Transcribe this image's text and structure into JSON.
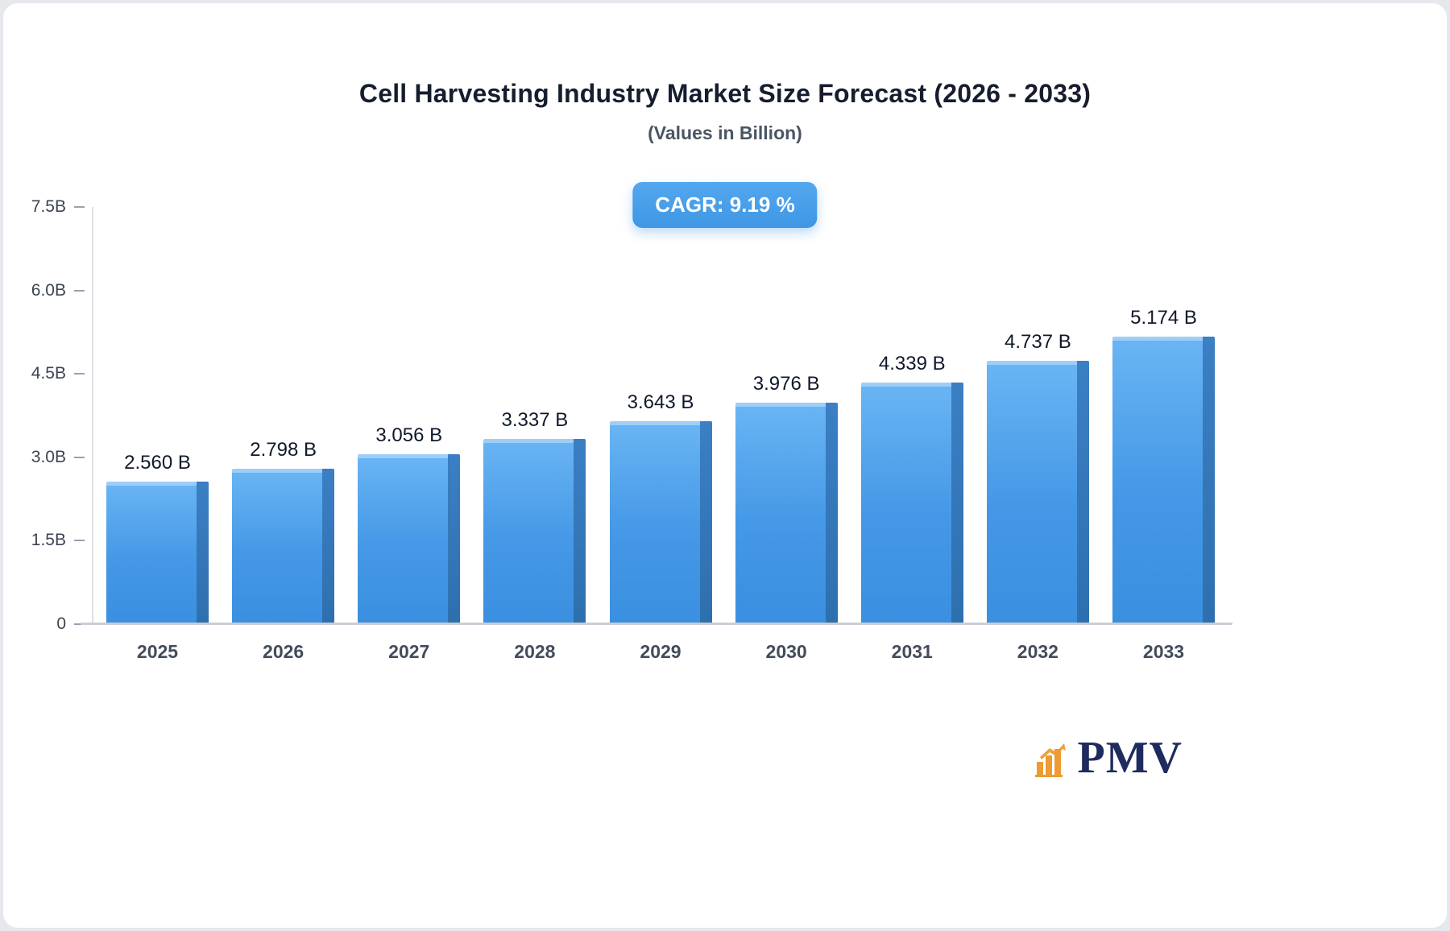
{
  "page": {
    "title": "Cell Harvesting Industry Market Size Forecast (2026 - 2033)",
    "subtitle": "(Values in Billion)",
    "cagr_label": "CAGR: 9.19 %"
  },
  "chart_data": {
    "type": "bar",
    "title": "Cell Harvesting Industry Market Size Forecast (2026 - 2033)",
    "subtitle": "(Values in Billion)",
    "categories": [
      "2025",
      "2026",
      "2027",
      "2028",
      "2029",
      "2030",
      "2031",
      "2032",
      "2033"
    ],
    "values": [
      2.56,
      2.798,
      3.056,
      3.337,
      3.643,
      3.976,
      4.339,
      4.737,
      5.174
    ],
    "value_labels": [
      "2.560 B",
      "2.798 B",
      "3.056 B",
      "3.337 B",
      "3.643 B",
      "3.976 B",
      "4.339 B",
      "4.737 B",
      "5.174 B"
    ],
    "xlabel": "",
    "ylabel": "",
    "ylim": [
      0,
      7.5
    ],
    "yticks": [
      {
        "value": 0,
        "label": "0"
      },
      {
        "value": 1.5,
        "label": "1.5B"
      },
      {
        "value": 3.0,
        "label": "3.0B"
      },
      {
        "value": 4.5,
        "label": "4.5B"
      },
      {
        "value": 6.0,
        "label": "6.0B"
      },
      {
        "value": 7.5,
        "label": "7.5B"
      }
    ],
    "grid": "off",
    "legend": "none",
    "annotations": [
      "CAGR: 9.19 %"
    ],
    "colors": {
      "bar_face_top": "#6ab5f4",
      "bar_face_bottom": "#3b8fe0",
      "bar_side": "#2e6fae",
      "badge": "#459ce7",
      "axis_line": "#c9ced6",
      "tick_text": "#3c4352",
      "value_text": "#10192b",
      "category_text": "#434c5c"
    }
  },
  "logo": {
    "text": "PMV",
    "icon": "bar-chart-icon",
    "text_color": "#1e2b5e",
    "icon_color": "#ed9b33"
  }
}
